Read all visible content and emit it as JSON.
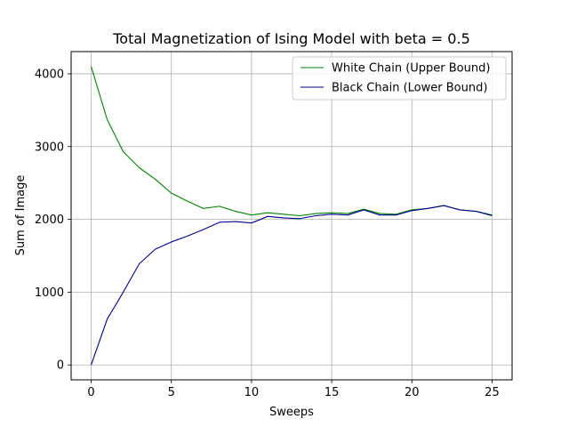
{
  "chart_data": {
    "type": "line",
    "title": "Total Magnetization of Ising Model with beta = 0.5",
    "xlabel": "Sweeps",
    "ylabel": "Sum of Image",
    "xlim": [
      -1.25,
      26.25
    ],
    "ylim": [
      -205,
      4305
    ],
    "xticks": [
      0,
      5,
      10,
      15,
      20,
      25
    ],
    "yticks": [
      0,
      1000,
      2000,
      3000,
      4000
    ],
    "grid": true,
    "legend_position": "upper right",
    "x": [
      0,
      1,
      2,
      3,
      4,
      5,
      6,
      7,
      8,
      9,
      10,
      11,
      12,
      13,
      14,
      15,
      16,
      17,
      18,
      19,
      20,
      21,
      22,
      23,
      24,
      25
    ],
    "series": [
      {
        "name": "White Chain (Upper Bound)",
        "color": "#008000",
        "values": [
          4100,
          3370,
          2930,
          2710,
          2550,
          2360,
          2250,
          2150,
          2180,
          2110,
          2060,
          2090,
          2070,
          2050,
          2080,
          2090,
          2080,
          2140,
          2080,
          2070,
          2130,
          2150,
          2190,
          2130,
          2110,
          2060
        ]
      },
      {
        "name": "Black Chain (Lower Bound)",
        "color": "#00008b",
        "values": [
          0,
          630,
          1000,
          1390,
          1590,
          1690,
          1770,
          1860,
          1960,
          1970,
          1950,
          2040,
          2020,
          2010,
          2050,
          2070,
          2060,
          2130,
          2060,
          2060,
          2120,
          2150,
          2190,
          2130,
          2110,
          2050
        ]
      }
    ]
  }
}
